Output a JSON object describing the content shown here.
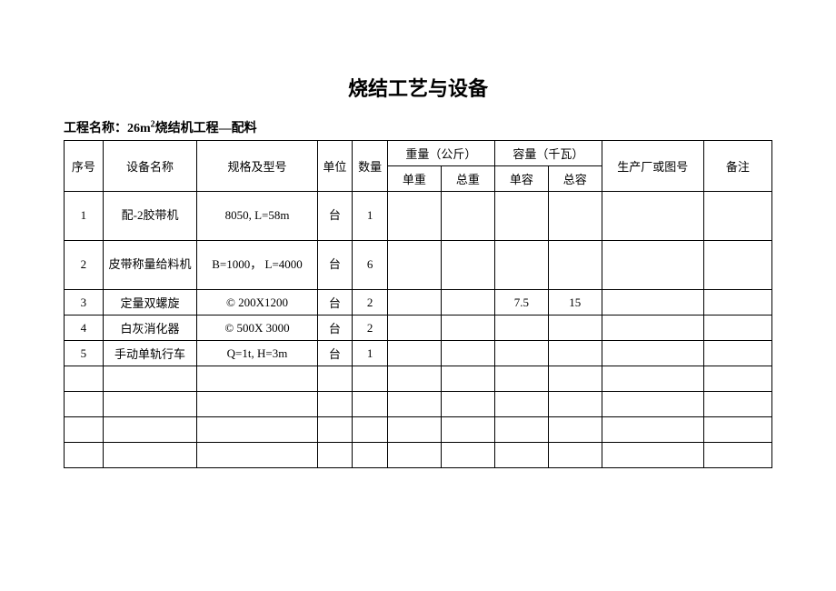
{
  "title": "烧结工艺与设备",
  "subtitle_prefix": "工程名称：26m",
  "subtitle_sup": "2",
  "subtitle_suffix": "烧结机工程—配料",
  "headers": {
    "seq": "序号",
    "name": "设备名称",
    "spec": "规格及型号",
    "unit": "单位",
    "qty": "数量",
    "weight": "重量（公斤）",
    "capacity": "容量（千瓦）",
    "mfg": "生产厂或图号",
    "note": "备注",
    "unit_w": "单重",
    "total_w": "总重",
    "unit_c": "单容",
    "total_c": "总容"
  },
  "rows": [
    {
      "seq": "1",
      "name": "配-2胶带机",
      "spec": "8050, L=58m",
      "unit": "台",
      "qty": "1",
      "uw": "",
      "tw": "",
      "uc": "",
      "tc": "",
      "mfg": "",
      "note": ""
    },
    {
      "seq": "2",
      "name": "皮带称量给料机",
      "spec": "B=1000，  L=4000",
      "unit": "台",
      "qty": "6",
      "uw": "",
      "tw": "",
      "uc": "",
      "tc": "",
      "mfg": "",
      "note": ""
    },
    {
      "seq": "3",
      "name": "定量双螺旋",
      "spec": "© 200X1200",
      "unit": "台",
      "qty": "2",
      "uw": "",
      "tw": "",
      "uc": "7.5",
      "tc": "15",
      "mfg": "",
      "note": ""
    },
    {
      "seq": "4",
      "name": "白灰消化器",
      "spec": "© 500X 3000",
      "unit": "台",
      "qty": "2",
      "uw": "",
      "tw": "",
      "uc": "",
      "tc": "",
      "mfg": "",
      "note": ""
    },
    {
      "seq": "5",
      "name": "手动单轨行车",
      "spec": "Q=1t, H=3m",
      "unit": "台",
      "qty": "1",
      "uw": "",
      "tw": "",
      "uc": "",
      "tc": "",
      "mfg": "",
      "note": ""
    },
    {
      "seq": "",
      "name": "",
      "spec": "",
      "unit": "",
      "qty": "",
      "uw": "",
      "tw": "",
      "uc": "",
      "tc": "",
      "mfg": "",
      "note": ""
    },
    {
      "seq": "",
      "name": "",
      "spec": "",
      "unit": "",
      "qty": "",
      "uw": "",
      "tw": "",
      "uc": "",
      "tc": "",
      "mfg": "",
      "note": ""
    },
    {
      "seq": "",
      "name": "",
      "spec": "",
      "unit": "",
      "qty": "",
      "uw": "",
      "tw": "",
      "uc": "",
      "tc": "",
      "mfg": "",
      "note": ""
    },
    {
      "seq": "",
      "name": "",
      "spec": "",
      "unit": "",
      "qty": "",
      "uw": "",
      "tw": "",
      "uc": "",
      "tc": "",
      "mfg": "",
      "note": ""
    }
  ]
}
